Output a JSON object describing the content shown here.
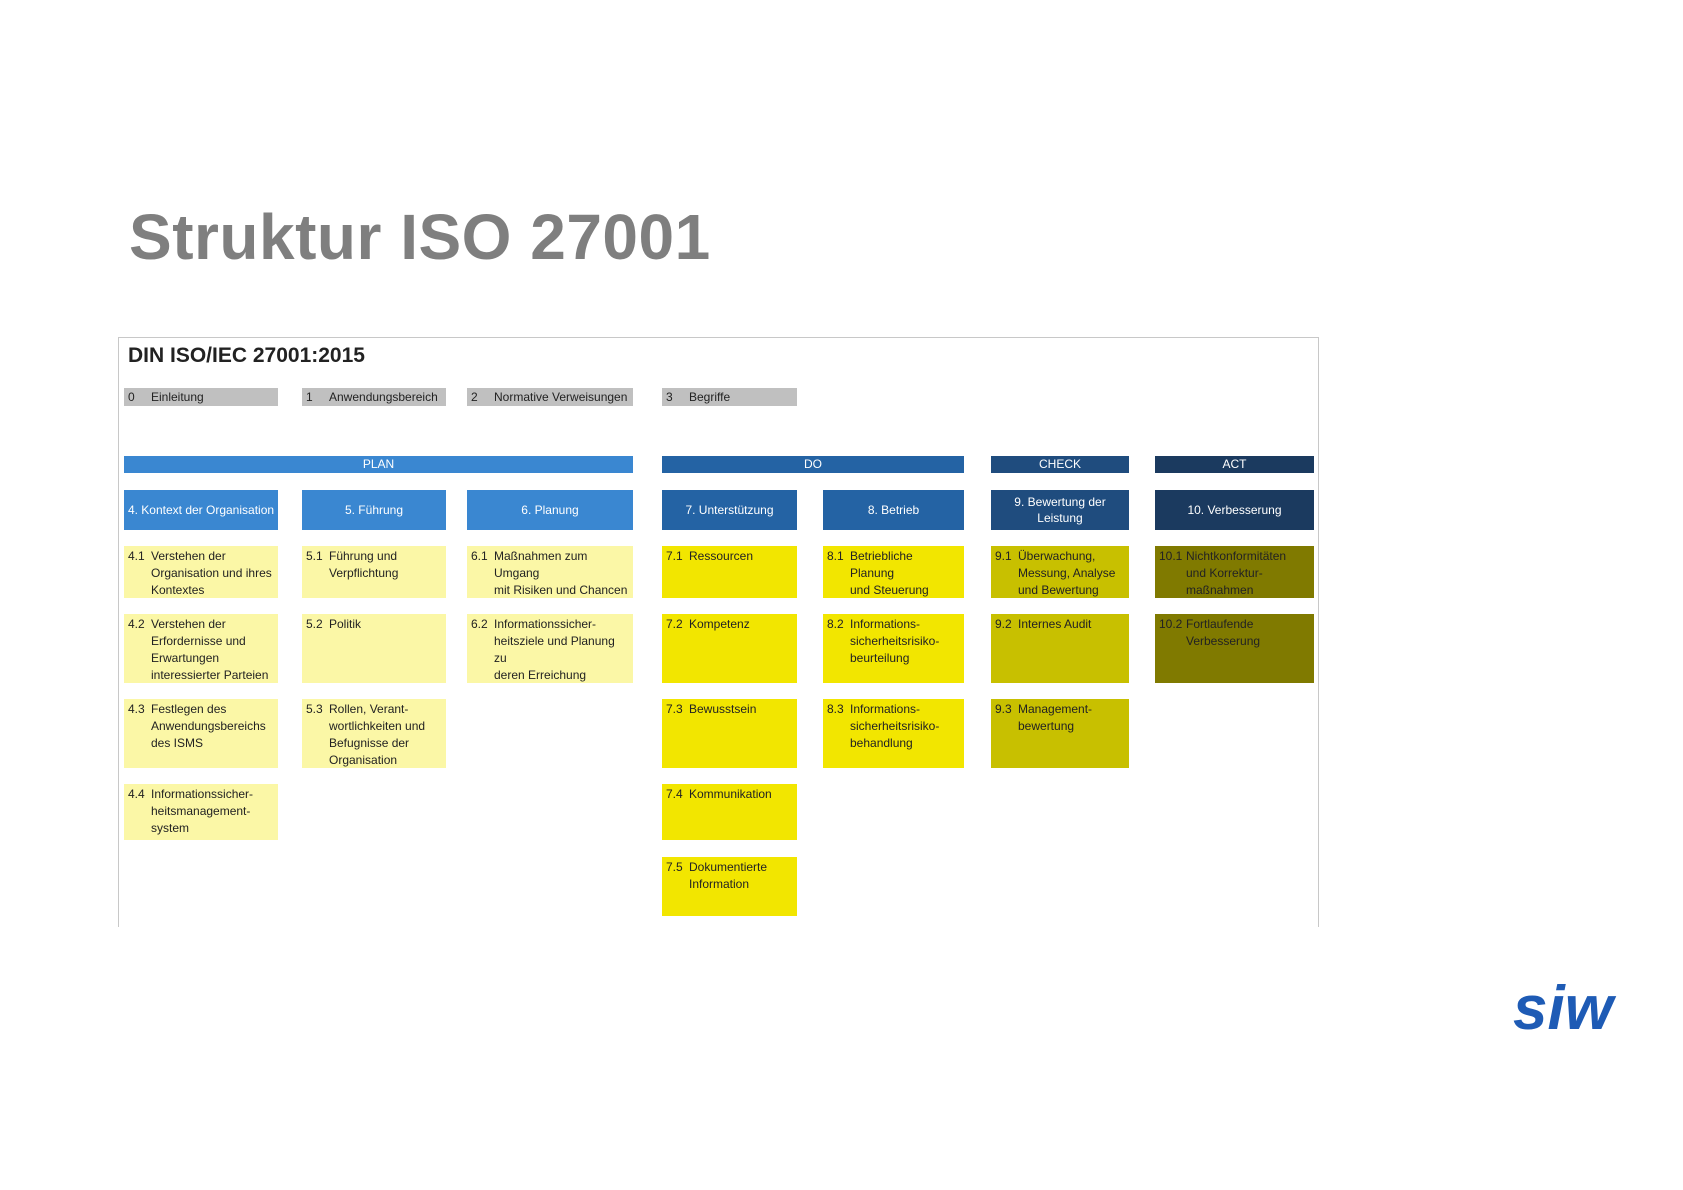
{
  "title": "Struktur ISO 27001",
  "subtitle": "DIN ISO/IEC 27001:2015",
  "intro": [
    {
      "num": "0",
      "text": "Einleitung"
    },
    {
      "num": "1",
      "text": "Anwendungsbereich"
    },
    {
      "num": "2",
      "text": "Normative Verweisungen"
    },
    {
      "num": "3",
      "text": "Begriffe"
    }
  ],
  "phases": [
    {
      "label": "PLAN",
      "color": "#3a87d1"
    },
    {
      "label": "DO",
      "color": "#2463a4"
    },
    {
      "label": "CHECK",
      "color": "#1f4c7e"
    },
    {
      "label": "ACT",
      "color": "#1b3a5f"
    }
  ],
  "columns": [
    {
      "header": "4. Kontext der Organisation",
      "color": "#3a87d1",
      "card_color": "#fbf7a6",
      "items": [
        {
          "num": "4.1",
          "text": "Verstehen der\nOrganisation und ihres\nKontextes"
        },
        {
          "num": "4.2",
          "text": "Verstehen der\nErfordernisse und\nErwartungen\ninteressierter Parteien"
        },
        {
          "num": "4.3",
          "text": "Festlegen des\nAnwendungsbereichs\ndes ISMS"
        },
        {
          "num": "4.4",
          "text": "Informationssicher-\nheitsmanagement-\nsystem"
        }
      ]
    },
    {
      "header": "5. Führung",
      "color": "#3a87d1",
      "card_color": "#fbf7a6",
      "items": [
        {
          "num": "5.1",
          "text": "Führung und\nVerpflichtung"
        },
        {
          "num": "5.2",
          "text": "Politik"
        },
        {
          "num": "5.3",
          "text": "Rollen, Verant-\nwortlichkeiten und\nBefugnisse der\nOrganisation"
        }
      ]
    },
    {
      "header": "6. Planung",
      "color": "#3a87d1",
      "card_color": "#fbf7a6",
      "items": [
        {
          "num": "6.1",
          "text": "Maßnahmen zum Umgang\nmit Risiken und Chancen"
        },
        {
          "num": "6.2",
          "text": "Informationssicher-\nheitsziele und Planung zu\nderen Erreichung"
        }
      ]
    },
    {
      "header": "7. Unterstützung",
      "color": "#2463a4",
      "card_color": "#f2e600",
      "items": [
        {
          "num": "7.1",
          "text": "Ressourcen"
        },
        {
          "num": "7.2",
          "text": "Kompetenz"
        },
        {
          "num": "7.3",
          "text": "Bewusstsein"
        },
        {
          "num": "7.4",
          "text": "Kommunikation"
        },
        {
          "num": "7.5",
          "text": "Dokumentierte\nInformation"
        }
      ]
    },
    {
      "header": "8. Betrieb",
      "color": "#2463a4",
      "card_color": "#f2e600",
      "items": [
        {
          "num": "8.1",
          "text": "Betriebliche Planung\nund Steuerung"
        },
        {
          "num": "8.2",
          "text": "Informations-\nsicherheitsrisiko-\nbeurteilung"
        },
        {
          "num": "8.3",
          "text": "Informations-\nsicherheitsrisiko-\nbehandlung"
        }
      ]
    },
    {
      "header": "9. Bewertung der\nLeistung",
      "color": "#1f4c7e",
      "card_color": "#c8c000",
      "items": [
        {
          "num": "9.1",
          "text": "Überwachung,\nMessung, Analyse\nund Bewertung"
        },
        {
          "num": "9.2",
          "text": "Internes Audit"
        },
        {
          "num": "9.3",
          "text": "Management-\nbewertung"
        }
      ]
    },
    {
      "header": "10. Verbesserung",
      "color": "#1b3a5f",
      "card_color": "#807a00",
      "items": [
        {
          "num": "10.1",
          "text": "Nichtkonformitäten\nund Korrektur-\nmaßnahmen"
        },
        {
          "num": "10.2",
          "text": "Fortlaufende\nVerbesserung"
        }
      ]
    }
  ],
  "logo": {
    "text": "siw",
    "color": "#1e5bb5"
  }
}
